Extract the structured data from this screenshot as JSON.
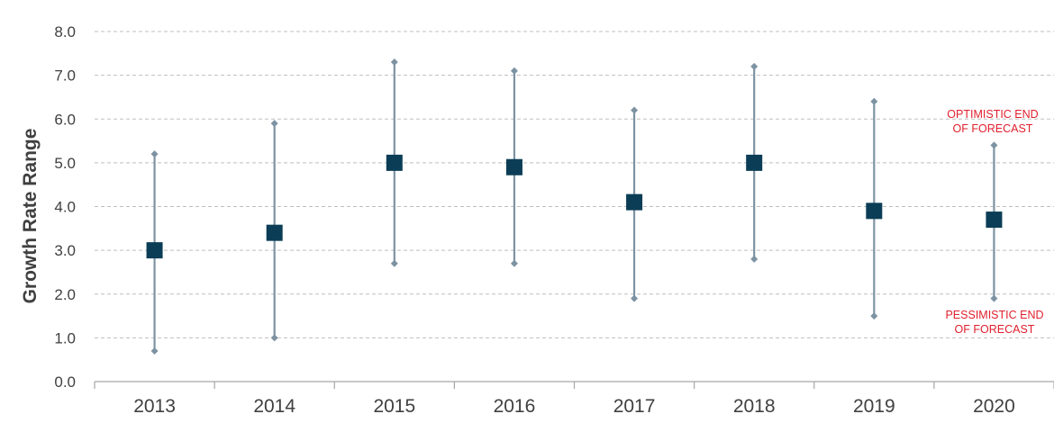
{
  "chart_data": {
    "type": "scatter",
    "title": "",
    "xlabel": "",
    "ylabel": "Growth Rate Range",
    "categories": [
      "2013",
      "2014",
      "2015",
      "2016",
      "2017",
      "2018",
      "2019",
      "2020"
    ],
    "midpoints": [
      3.0,
      3.4,
      5.0,
      4.9,
      4.1,
      5.0,
      3.9,
      3.7
    ],
    "highs": [
      5.2,
      5.9,
      7.3,
      7.1,
      6.2,
      7.2,
      6.4,
      5.4
    ],
    "lows": [
      0.7,
      1.0,
      2.7,
      2.7,
      1.9,
      2.8,
      1.5,
      1.9
    ],
    "ylim": [
      0,
      8
    ],
    "y_ticks": [
      "0.0",
      "1.0",
      "2.0",
      "3.0",
      "4.0",
      "5.0",
      "6.0",
      "7.0",
      "8.0"
    ],
    "grid": true,
    "annotations": {
      "optimistic_line1": "OPTIMISTIC END",
      "optimistic_line2": "OF FORECAST",
      "pessimistic_line1": "PESSIMISTIC END",
      "pessimistic_line2": "OF FORECAST"
    },
    "colors": {
      "marker": "#0b3d56",
      "whisker": "#7d93a3",
      "grid": "#bfbfbf",
      "annotation": "#e0202e"
    }
  }
}
